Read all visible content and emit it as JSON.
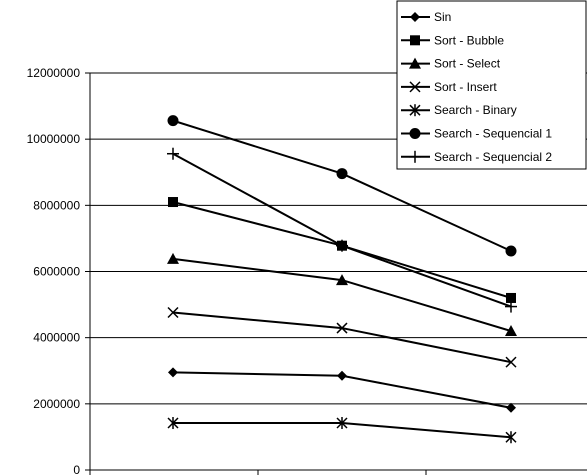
{
  "chart_data": {
    "type": "line",
    "categories": [
      "",
      "",
      ""
    ],
    "ylim": [
      0,
      12000000
    ],
    "yticks": [
      0,
      2000000,
      4000000,
      6000000,
      8000000,
      10000000,
      12000000
    ],
    "ytick_labels": [
      "0",
      "2000000",
      "4000000",
      "6000000",
      "8000000",
      "10000000",
      "12000000"
    ],
    "grid": "horizontal",
    "legend_position": "top-right",
    "series": [
      {
        "name": "Sin",
        "marker": "diamond",
        "values": [
          2950000,
          2850000,
          1880000
        ]
      },
      {
        "name": "Sort - Bubble",
        "marker": "square",
        "values": [
          8100000,
          6780000,
          5200000
        ]
      },
      {
        "name": "Sort - Select",
        "marker": "triangle",
        "values": [
          6380000,
          5740000,
          4200000
        ]
      },
      {
        "name": "Sort - Insert",
        "marker": "x",
        "values": [
          4760000,
          4290000,
          3260000
        ]
      },
      {
        "name": "Search - Binary",
        "marker": "asterisk",
        "values": [
          1420000,
          1420000,
          990000
        ]
      },
      {
        "name": "Search - Sequencial 1",
        "marker": "circle",
        "values": [
          10560000,
          8960000,
          6620000
        ]
      },
      {
        "name": "Search - Sequencial 2",
        "marker": "plus",
        "values": [
          9560000,
          6780000,
          4940000
        ]
      }
    ]
  }
}
